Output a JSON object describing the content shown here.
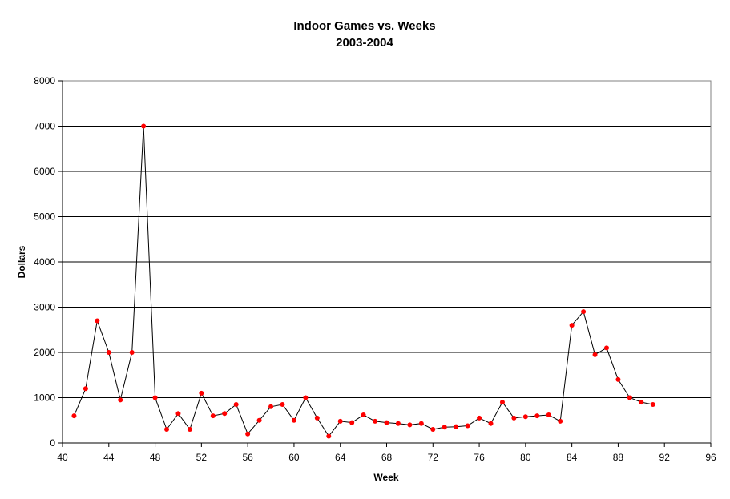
{
  "chart_data": {
    "type": "line",
    "title": "Indoor Games vs. Weeks",
    "subtitle": "2003-2004",
    "xlabel": "Week",
    "ylabel": "Dollars",
    "xlim": [
      40,
      96
    ],
    "ylim": [
      0,
      8000
    ],
    "x_ticks": [
      40,
      44,
      48,
      52,
      56,
      60,
      64,
      68,
      72,
      76,
      80,
      84,
      88,
      92,
      96
    ],
    "y_ticks": [
      0,
      1000,
      2000,
      3000,
      4000,
      5000,
      6000,
      7000,
      8000
    ],
    "grid": "horizontal",
    "legend": "none",
    "colors": {
      "line": "#000000",
      "marker": "#ff0000",
      "plot_border": "#808080",
      "grid": "#000000"
    },
    "series": [
      {
        "x": [
          41,
          42,
          43,
          44,
          45,
          46,
          47,
          48,
          49,
          50,
          51,
          52,
          53,
          54,
          55,
          56,
          57,
          58,
          59,
          60,
          61,
          62,
          63,
          64,
          65,
          66,
          67,
          68,
          69,
          70,
          71,
          72,
          73,
          74,
          75,
          76,
          77,
          78,
          79,
          80,
          81,
          82,
          83,
          84,
          85,
          86,
          87,
          88,
          89,
          90,
          91
        ],
        "values": [
          600,
          1200,
          2700,
          2000,
          950,
          2000,
          7000,
          1000,
          300,
          650,
          300,
          1100,
          600,
          650,
          850,
          200,
          500,
          800,
          850,
          500,
          1000,
          550,
          150,
          480,
          450,
          620,
          480,
          450,
          430,
          400,
          430,
          300,
          350,
          360,
          380,
          550,
          430,
          900,
          550,
          580,
          600,
          620,
          480,
          2600,
          2900,
          1950,
          2100,
          1400,
          1000,
          900,
          850
        ]
      }
    ]
  }
}
